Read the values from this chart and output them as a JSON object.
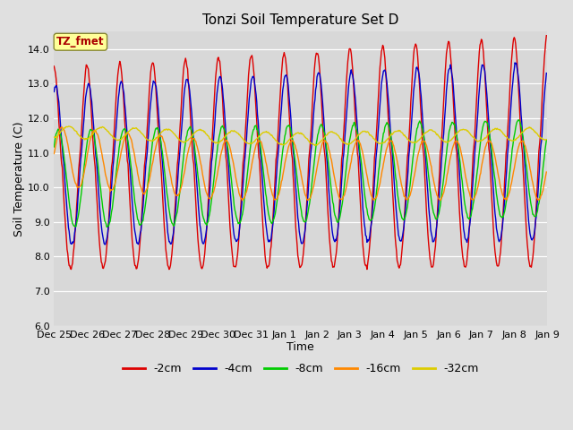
{
  "title": "Tonzi Soil Temperature Set D",
  "xlabel": "Time",
  "ylabel": "Soil Temperature (C)",
  "ylim": [
    6.0,
    14.5
  ],
  "yticks": [
    6.0,
    7.0,
    8.0,
    9.0,
    10.0,
    11.0,
    12.0,
    13.0,
    14.0
  ],
  "fig_facecolor": "#e0e0e0",
  "plot_bg_color": "#d8d8d8",
  "legend_label": "TZ_fmet",
  "legend_box_color": "#ffff99",
  "legend_text_color": "#aa0000",
  "series_colors": {
    "-2cm": "#dd0000",
    "-4cm": "#0000cc",
    "-8cm": "#00cc00",
    "-16cm": "#ff8800",
    "-32cm": "#ddcc00"
  },
  "xtick_labels": [
    "Dec 25",
    "Dec 26",
    "Dec 27",
    "Dec 28",
    "Dec 29",
    "Dec 30",
    "Dec 31",
    "Jan 1",
    "Jan 2",
    "Jan 3",
    "Jan 4",
    "Jan 5",
    "Jan 6",
    "Jan 7",
    "Jan 8",
    "Jan 9"
  ],
  "n_days": 15,
  "n_points_per_day": 48
}
